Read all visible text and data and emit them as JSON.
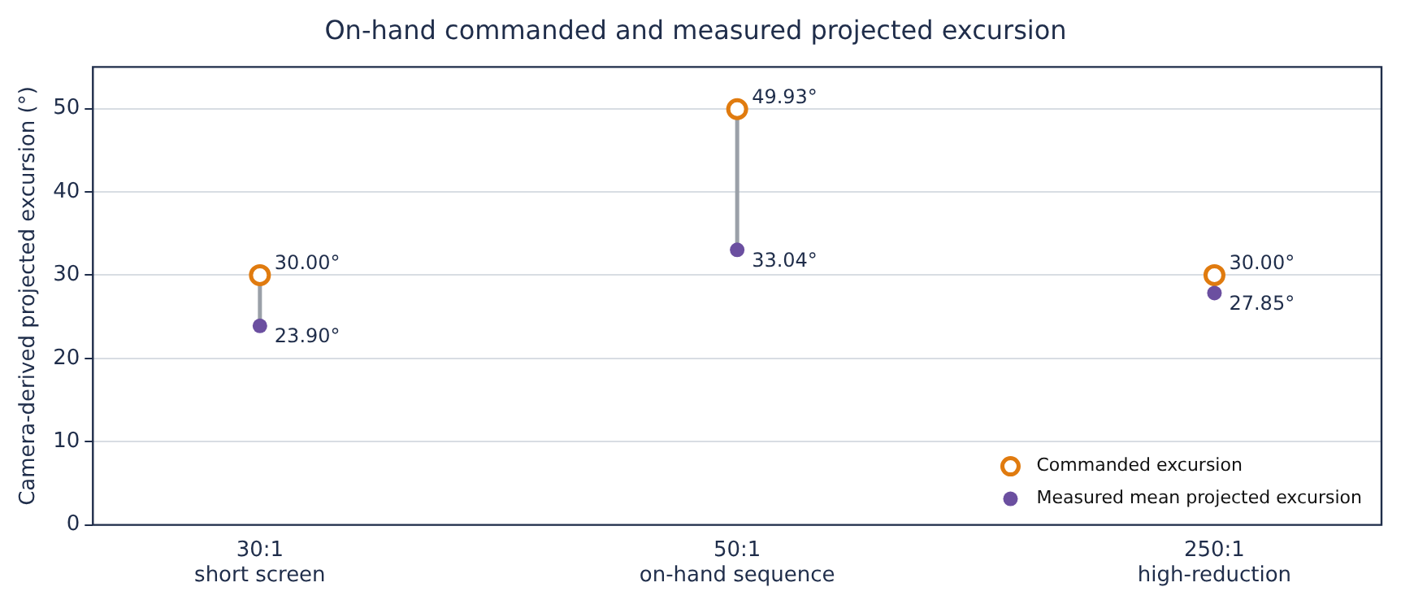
{
  "chart_data": {
    "type": "scatter",
    "title": "On-hand commanded and measured projected excursion",
    "ylabel": "Camera-derived projected excursion (°)",
    "categories": [
      "30:1\nshort screen",
      "50:1\non-hand sequence",
      "250:1\nhigh-reduction"
    ],
    "series": [
      {
        "name": "Commanded excursion",
        "color": "#e07b0f",
        "marker": "circle",
        "values": [
          30.0,
          49.93,
          30.0
        ],
        "value_labels": [
          "30.00°",
          "49.93°",
          "30.00°"
        ]
      },
      {
        "name": "Measured mean projected excursion",
        "color": "#6b4fa0",
        "marker": "circle",
        "values": [
          23.9,
          33.04,
          27.85
        ],
        "value_labels": [
          "23.90°",
          "33.04°",
          "27.85°"
        ]
      }
    ],
    "ylim": [
      0,
      55
    ],
    "yticks": [
      0,
      10,
      20,
      30,
      40,
      50
    ],
    "grid": "y",
    "legend": "bottom right"
  }
}
